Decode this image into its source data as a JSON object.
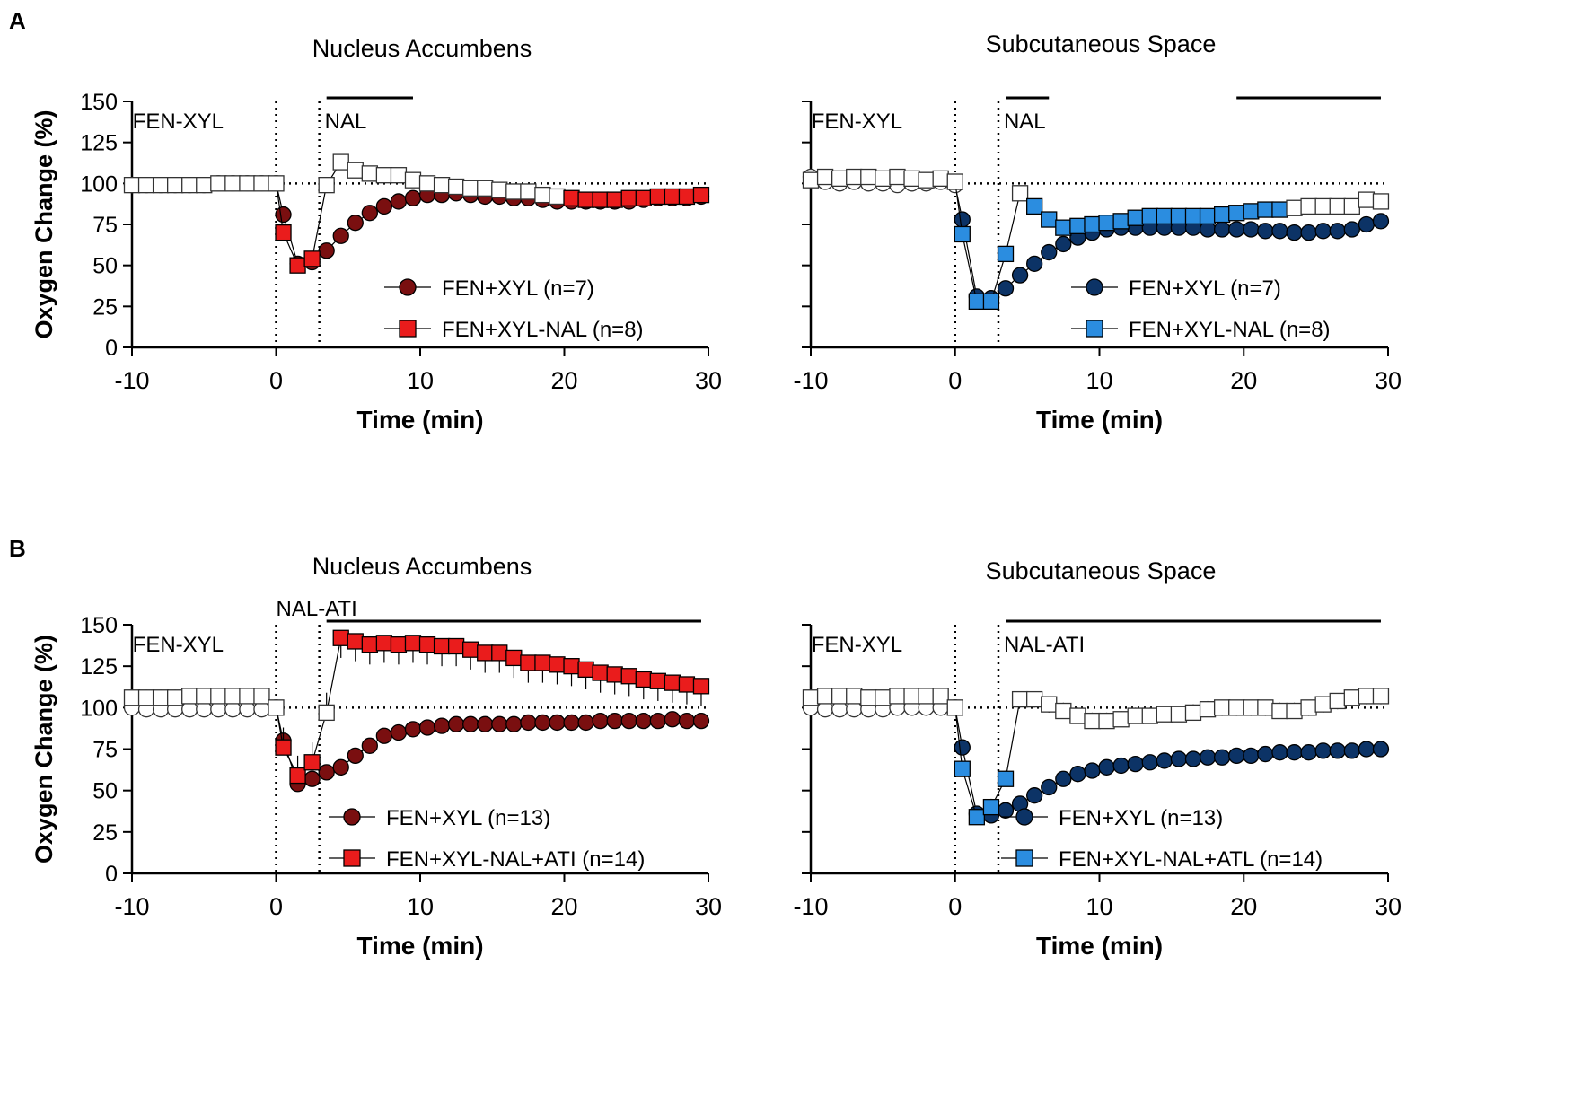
{
  "panel_labels": [
    "A",
    "B"
  ],
  "style": {
    "red_dark": "#7a0f10",
    "red": "#ea1c1c",
    "navy": "#0c3366",
    "blue": "#2b8de0",
    "axis": "#000000"
  },
  "chart_data": [
    {
      "id": "A-NAc",
      "panel": "A",
      "type": "line",
      "title": "Nucleus Accumbens",
      "xlabel": "Time (min)",
      "ylabel": "Oxygen Change (%)",
      "xlim": [
        -10,
        30
      ],
      "ylim": [
        0,
        150
      ],
      "xticks": [
        -10,
        0,
        10,
        20,
        30
      ],
      "yticks": [
        0,
        25,
        50,
        75,
        100,
        125,
        150
      ],
      "reference_line": 100,
      "vlines": [
        0,
        3
      ],
      "event_labels": [
        "FEN-XYL",
        "NAL"
      ],
      "sig_bars": [
        [
          3.5,
          9.5
        ]
      ],
      "legend": [
        "FEN+XYL (n=7)",
        "FEN+XYL-NAL (n=8)"
      ],
      "series": [
        {
          "name": "FEN+XYL (n=7)",
          "marker": "circle",
          "color": "red_dark",
          "err": 3,
          "pre_x": [
            -10,
            -9,
            -8,
            -7,
            -6,
            -5,
            -4,
            -3,
            -2,
            -1,
            0
          ],
          "pre_y": [
            99,
            99,
            99,
            99,
            99,
            99,
            100,
            100,
            100,
            100,
            100
          ],
          "x": [
            0.5,
            1.5,
            2.5,
            3.5,
            4.5,
            5.5,
            6.5,
            7.5,
            8.5,
            9.5,
            10.5,
            11.5,
            12.5,
            13.5,
            14.5,
            15.5,
            16.5,
            17.5,
            18.5,
            19.5,
            20.5,
            21.5,
            22.5,
            23.5,
            24.5,
            25.5,
            26.5,
            27.5,
            28.5,
            29.5
          ],
          "y": [
            81,
            51,
            52,
            59,
            68,
            76,
            82,
            86,
            89,
            91,
            93,
            93,
            94,
            93,
            92,
            92,
            91,
            91,
            90,
            89,
            89,
            89,
            89,
            89,
            89,
            90,
            91,
            91,
            91,
            92
          ]
        },
        {
          "name": "FEN+XYL-NAL (n=8)",
          "marker": "square",
          "color": "red",
          "err": 3,
          "pre_x": [
            -10,
            -9,
            -8,
            -7,
            -6,
            -5,
            -4,
            -3,
            -2,
            -1,
            0
          ],
          "pre_y": [
            99,
            99,
            99,
            99,
            99,
            99,
            100,
            100,
            100,
            100,
            100
          ],
          "x": [
            0.5,
            1.5,
            2.5,
            3.5,
            4.5,
            5.5,
            6.5,
            7.5,
            8.5,
            9.5,
            10.5,
            11.5,
            12.5,
            13.5,
            14.5,
            15.5,
            16.5,
            17.5,
            18.5,
            19.5,
            20.5,
            21.5,
            22.5,
            23.5,
            24.5,
            25.5,
            26.5,
            27.5,
            28.5,
            29.5
          ],
          "y": [
            70,
            50,
            54,
            99,
            113,
            108,
            106,
            105,
            105,
            102,
            100,
            99,
            98,
            97,
            97,
            96,
            95,
            95,
            93,
            92,
            91,
            90,
            90,
            90,
            91,
            91,
            92,
            92,
            92,
            93
          ],
          "open_from": 3.5,
          "open_to": 19.5
        }
      ]
    },
    {
      "id": "A-SC",
      "panel": "A",
      "type": "line",
      "title": "Subcutaneous Space",
      "xlabel": "Time (min)",
      "ylabel": "",
      "xlim": [
        -10,
        30
      ],
      "ylim": [
        0,
        150
      ],
      "xticks": [
        -10,
        0,
        10,
        20,
        30
      ],
      "yticks": [
        0,
        25,
        50,
        75,
        100,
        125,
        150
      ],
      "reference_line": 100,
      "vlines": [
        0,
        3
      ],
      "event_labels": [
        "FEN-XYL",
        "NAL"
      ],
      "sig_bars": [
        [
          3.5,
          6.5
        ],
        [
          19.5,
          29.5
        ]
      ],
      "legend": [
        "FEN+XYL (n=7)",
        "FEN+XYL-NAL (n=8)"
      ],
      "series": [
        {
          "name": "FEN+XYL (n=7)",
          "marker": "circle",
          "color": "navy",
          "err": 3,
          "pre_x": [
            -10,
            -9,
            -8,
            -7,
            -6,
            -5,
            -4,
            -3,
            -2,
            -1,
            0
          ],
          "pre_y": [
            104,
            101,
            100,
            101,
            100,
            100,
            99,
            100,
            100,
            101,
            99
          ],
          "x": [
            0.5,
            1.5,
            2.5,
            3.5,
            4.5,
            5.5,
            6.5,
            7.5,
            8.5,
            9.5,
            10.5,
            11.5,
            12.5,
            13.5,
            14.5,
            15.5,
            16.5,
            17.5,
            18.5,
            19.5,
            20.5,
            21.5,
            22.5,
            23.5,
            24.5,
            25.5,
            26.5,
            27.5,
            28.5,
            29.5
          ],
          "y": [
            78,
            31,
            30,
            36,
            44,
            51,
            58,
            63,
            67,
            70,
            72,
            73,
            73,
            73,
            73,
            73,
            73,
            72,
            72,
            72,
            72,
            71,
            71,
            70,
            70,
            71,
            71,
            72,
            75,
            77
          ]
        },
        {
          "name": "FEN+XYL-NAL (n=8)",
          "marker": "square",
          "color": "blue",
          "err": 3,
          "pre_x": [
            -10,
            -9,
            -8,
            -7,
            -6,
            -5,
            -4,
            -3,
            -2,
            -1,
            0
          ],
          "pre_y": [
            102,
            104,
            103,
            104,
            104,
            103,
            104,
            103,
            102,
            103,
            101
          ],
          "x": [
            0.5,
            1.5,
            2.5,
            3.5,
            4.5,
            5.5,
            6.5,
            7.5,
            8.5,
            9.5,
            10.5,
            11.5,
            12.5,
            13.5,
            14.5,
            15.5,
            16.5,
            17.5,
            18.5,
            19.5,
            20.5,
            21.5,
            22.5,
            23.5,
            24.5,
            25.5,
            26.5,
            27.5,
            28.5,
            29.5
          ],
          "y": [
            69,
            28,
            28,
            57,
            94,
            86,
            78,
            73,
            74,
            75,
            76,
            77,
            79,
            80,
            80,
            80,
            80,
            80,
            81,
            82,
            83,
            84,
            84,
            85,
            86,
            86,
            86,
            86,
            90,
            89
          ],
          "open_from": 4.5,
          "open_to": 4.5,
          "open_from_2": 23.5,
          "open_to_2": 29.5
        }
      ]
    },
    {
      "id": "B-NAc",
      "panel": "B",
      "type": "line",
      "title": "Nucleus Accumbens",
      "xlabel": "Time (min)",
      "ylabel": "Oxygen Change (%)",
      "xlim": [
        -10,
        30
      ],
      "ylim": [
        0,
        150
      ],
      "xticks": [
        -10,
        0,
        10,
        20,
        30
      ],
      "yticks": [
        0,
        25,
        50,
        75,
        100,
        125,
        150
      ],
      "reference_line": 100,
      "vlines": [
        0,
        3
      ],
      "event_labels": [
        "FEN-XYL",
        "NAL-ATI"
      ],
      "sig_bars": [
        [
          3.5,
          29.5
        ]
      ],
      "legend": [
        "FEN+XYL (n=13)",
        "FEN+XYL-NAL+ATI (n=14)"
      ],
      "series": [
        {
          "name": "FEN+XYL (n=13)",
          "marker": "circle",
          "color": "red_dark",
          "err": 2,
          "pre_x": [
            -10,
            -9,
            -8,
            -7,
            -6,
            -5,
            -4,
            -3,
            -2,
            -1,
            0
          ],
          "pre_y": [
            100,
            99,
            99,
            99,
            99,
            99,
            99,
            99,
            99,
            99,
            100
          ],
          "x": [
            0.5,
            1.5,
            2.5,
            3.5,
            4.5,
            5.5,
            6.5,
            7.5,
            8.5,
            9.5,
            10.5,
            11.5,
            12.5,
            13.5,
            14.5,
            15.5,
            16.5,
            17.5,
            18.5,
            19.5,
            20.5,
            21.5,
            22.5,
            23.5,
            24.5,
            25.5,
            26.5,
            27.5,
            28.5,
            29.5
          ],
          "y": [
            80,
            54,
            57,
            61,
            64,
            71,
            77,
            83,
            85,
            87,
            88,
            89,
            90,
            90,
            90,
            90,
            90,
            91,
            91,
            91,
            91,
            91,
            92,
            92,
            92,
            92,
            92,
            93,
            92,
            92
          ]
        },
        {
          "name": "FEN+XYL-NAL+ATI (n=14)",
          "marker": "square",
          "color": "red",
          "err": 12,
          "pre_x": [
            -10,
            -9,
            -8,
            -7,
            -6,
            -5,
            -4,
            -3,
            -2,
            -1,
            0
          ],
          "pre_y": [
            106,
            106,
            106,
            106,
            107,
            107,
            107,
            107,
            107,
            107,
            100
          ],
          "x": [
            0.5,
            1.5,
            2.5,
            3.5,
            4.5,
            5.5,
            6.5,
            7.5,
            8.5,
            9.5,
            10.5,
            11.5,
            12.5,
            13.5,
            14.5,
            15.5,
            16.5,
            17.5,
            18.5,
            19.5,
            20.5,
            21.5,
            22.5,
            23.5,
            24.5,
            25.5,
            26.5,
            27.5,
            28.5,
            29.5
          ],
          "y": [
            76,
            59,
            67,
            97,
            142,
            140,
            138,
            139,
            138,
            139,
            138,
            137,
            137,
            135,
            133,
            133,
            130,
            127,
            127,
            126,
            125,
            123,
            121,
            120,
            119,
            117,
            116,
            115,
            114,
            113
          ],
          "open_from": 3.5,
          "open_to": 3.5
        }
      ]
    },
    {
      "id": "B-SC",
      "panel": "B",
      "type": "line",
      "title": "Subcutaneous Space",
      "xlabel": "Time (min)",
      "ylabel": "",
      "xlim": [
        -10,
        30
      ],
      "ylim": [
        0,
        150
      ],
      "xticks": [
        -10,
        0,
        10,
        20,
        30
      ],
      "yticks": [
        0,
        25,
        50,
        75,
        100,
        125,
        150
      ],
      "reference_line": 100,
      "vlines": [
        0,
        3
      ],
      "event_labels": [
        "FEN-XYL",
        "NAL-ATI"
      ],
      "sig_bars": [
        [
          3.5,
          29.5
        ]
      ],
      "legend": [
        "FEN+XYL (n=13)",
        "FEN+XYL-NAL+ATL (n=14)"
      ],
      "series": [
        {
          "name": "FEN+XYL (n=13)",
          "marker": "circle",
          "color": "navy",
          "err": 2,
          "pre_x": [
            -10,
            -9,
            -8,
            -7,
            -6,
            -5,
            -4,
            -3,
            -2,
            -1,
            0
          ],
          "pre_y": [
            100,
            99,
            99,
            99,
            99,
            99,
            100,
            100,
            100,
            100,
            100
          ],
          "x": [
            0.5,
            1.5,
            2.5,
            3.5,
            4.5,
            5.5,
            6.5,
            7.5,
            8.5,
            9.5,
            10.5,
            11.5,
            12.5,
            13.5,
            14.5,
            15.5,
            16.5,
            17.5,
            18.5,
            19.5,
            20.5,
            21.5,
            22.5,
            23.5,
            24.5,
            25.5,
            26.5,
            27.5,
            28.5,
            29.5
          ],
          "y": [
            76,
            36,
            35,
            38,
            42,
            47,
            52,
            57,
            60,
            62,
            64,
            65,
            66,
            67,
            68,
            69,
            69,
            70,
            70,
            71,
            71,
            72,
            73,
            73,
            73,
            74,
            74,
            74,
            75,
            75
          ]
        },
        {
          "name": "FEN+XYL-NAL+ATL (n=14)",
          "marker": "square",
          "color": "blue",
          "err": 5,
          "pre_x": [
            -10,
            -9,
            -8,
            -7,
            -6,
            -5,
            -4,
            -3,
            -2,
            -1,
            0
          ],
          "pre_y": [
            106,
            107,
            107,
            107,
            106,
            106,
            107,
            107,
            107,
            107,
            100
          ],
          "x": [
            0.5,
            1.5,
            2.5,
            3.5,
            4.5,
            5.5,
            6.5,
            7.5,
            8.5,
            9.5,
            10.5,
            11.5,
            12.5,
            13.5,
            14.5,
            15.5,
            16.5,
            17.5,
            18.5,
            19.5,
            20.5,
            21.5,
            22.5,
            23.5,
            24.5,
            25.5,
            26.5,
            27.5,
            28.5,
            29.5
          ],
          "y": [
            63,
            34,
            40,
            57,
            105,
            105,
            102,
            98,
            95,
            92,
            92,
            93,
            95,
            95,
            96,
            96,
            97,
            99,
            100,
            100,
            100,
            100,
            98,
            98,
            100,
            102,
            104,
            106,
            107,
            107
          ],
          "open_from": 4.5,
          "open_to": 29.5
        }
      ]
    }
  ]
}
